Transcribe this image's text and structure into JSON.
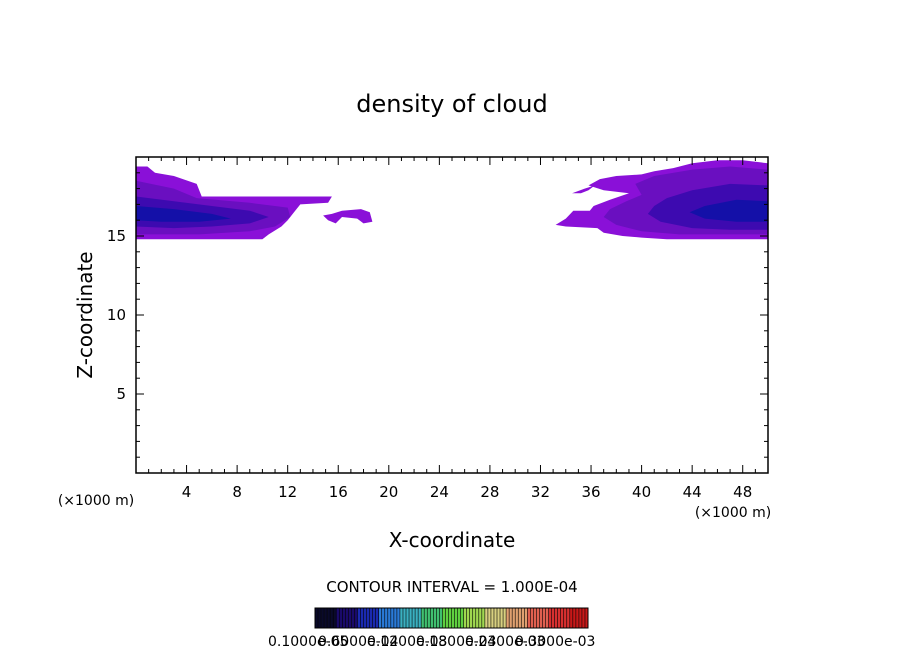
{
  "chart_data": {
    "type": "contour",
    "title": "density of cloud",
    "xlabel": "X-coordinate",
    "ylabel": "Z-coordinate",
    "x_unit_left": "(×1000 m)",
    "x_unit_right": "(×1000 m)",
    "xlim": [
      0,
      50
    ],
    "ylim": [
      0,
      20
    ],
    "x_ticks": [
      4,
      8,
      12,
      16,
      20,
      24,
      28,
      32,
      36,
      40,
      44,
      48
    ],
    "x_tick_labels": [
      "4",
      "8",
      "12",
      "16",
      "20",
      "24",
      "28",
      "32",
      "36",
      "40",
      "44",
      "48"
    ],
    "y_ticks": [
      5,
      10,
      15
    ],
    "y_tick_labels": [
      "5",
      "10",
      "15"
    ],
    "contour_interval_text": "CONTOUR INTERVAL = 1.000E-04",
    "colorbar_labels_text": "0.10000e-05",
    "colorbar_labels_overlap": [
      "0.1000e-05",
      "0.6000e-04",
      "0.1200e-03",
      "0.1800e-03",
      "0.2400e-03",
      "0.3000e-03"
    ],
    "colors": {
      "outer": "#8a10d8",
      "level2": "#6a0fc0",
      "level3": "#3d0ab0",
      "core": "#1410a8"
    },
    "colorbar_colors": [
      "#0a0a2a",
      "#1a0a6a",
      "#1a2ab0",
      "#2a7ad8",
      "#3ab0c0",
      "#40c070",
      "#60d040",
      "#a0d850",
      "#d8d080",
      "#e0a070",
      "#e06050",
      "#d83030",
      "#c81818"
    ],
    "regions": [
      {
        "level": "outer",
        "points": [
          [
            0,
            19.4
          ],
          [
            0.9,
            19.4
          ],
          [
            1.5,
            19
          ],
          [
            3,
            18.8
          ],
          [
            4.8,
            18.3
          ],
          [
            5.2,
            17.5
          ],
          [
            15.5,
            17.5
          ],
          [
            15.2,
            17.1
          ],
          [
            13,
            17.0
          ],
          [
            12.5,
            16.5
          ],
          [
            12,
            16
          ],
          [
            11.5,
            15.6
          ],
          [
            10.5,
            15.1
          ],
          [
            10,
            14.8
          ],
          [
            0,
            14.8
          ]
        ]
      },
      {
        "level": "level2",
        "points": [
          [
            0,
            18.5
          ],
          [
            3,
            18
          ],
          [
            4.8,
            17.4
          ],
          [
            9,
            17.1
          ],
          [
            12,
            16.8
          ],
          [
            12.2,
            16.2
          ],
          [
            11,
            15.6
          ],
          [
            9,
            15.3
          ],
          [
            5,
            15.1
          ],
          [
            0,
            15.1
          ]
        ]
      },
      {
        "level": "level3",
        "points": [
          [
            0,
            17.5
          ],
          [
            3,
            17.2
          ],
          [
            6,
            16.9
          ],
          [
            9,
            16.6
          ],
          [
            10.5,
            16.2
          ],
          [
            9,
            15.8
          ],
          [
            6,
            15.6
          ],
          [
            3,
            15.5
          ],
          [
            0,
            15.6
          ]
        ]
      },
      {
        "level": "core",
        "points": [
          [
            0,
            16.9
          ],
          [
            3,
            16.7
          ],
          [
            6,
            16.4
          ],
          [
            7.5,
            16.1
          ],
          [
            5,
            15.9
          ],
          [
            2,
            15.9
          ],
          [
            0,
            16.0
          ]
        ]
      },
      {
        "level": "outer",
        "points": [
          [
            14.8,
            16.3
          ],
          [
            15.2,
            16.0
          ],
          [
            15.8,
            15.8
          ],
          [
            16.3,
            16.2
          ],
          [
            17.5,
            16.1
          ],
          [
            18,
            15.8
          ],
          [
            18.7,
            15.9
          ],
          [
            18.5,
            16.5
          ],
          [
            17.8,
            16.7
          ],
          [
            16.3,
            16.6
          ],
          [
            15.5,
            16.4
          ]
        ]
      },
      {
        "level": "outer",
        "points": [
          [
            50,
            19.6
          ],
          [
            48,
            19.8
          ],
          [
            46,
            19.8
          ],
          [
            44,
            19.6
          ],
          [
            42.5,
            19.3
          ],
          [
            41,
            19.1
          ],
          [
            40,
            18.9
          ],
          [
            38,
            18.8
          ],
          [
            36.7,
            18.6
          ],
          [
            35.8,
            18.2
          ],
          [
            37,
            17.9
          ],
          [
            39,
            17.7
          ],
          [
            37.5,
            17.3
          ],
          [
            36.2,
            16.9
          ],
          [
            35.9,
            16.6
          ],
          [
            34.6,
            16.6
          ],
          [
            34,
            16.1
          ],
          [
            33.2,
            15.7
          ],
          [
            34,
            15.6
          ],
          [
            36.5,
            15.5
          ],
          [
            37,
            15.2
          ],
          [
            38.5,
            15.0
          ],
          [
            40,
            14.9
          ],
          [
            42,
            14.8
          ],
          [
            50,
            14.8
          ]
        ]
      },
      {
        "level": "level2",
        "points": [
          [
            50,
            19.2
          ],
          [
            47,
            19.4
          ],
          [
            44,
            19.2
          ],
          [
            41,
            18.8
          ],
          [
            39.5,
            18.3
          ],
          [
            40,
            17.6
          ],
          [
            38.8,
            17.2
          ],
          [
            37.5,
            16.7
          ],
          [
            37,
            16.2
          ],
          [
            38,
            15.7
          ],
          [
            40,
            15.3
          ],
          [
            43,
            15.1
          ],
          [
            50,
            15.1
          ]
        ]
      },
      {
        "level": "level3",
        "points": [
          [
            50,
            18.2
          ],
          [
            47,
            18.3
          ],
          [
            44,
            17.9
          ],
          [
            42,
            17.4
          ],
          [
            41,
            16.9
          ],
          [
            40.5,
            16.4
          ],
          [
            41.5,
            15.9
          ],
          [
            44,
            15.5
          ],
          [
            47,
            15.4
          ],
          [
            50,
            15.4
          ]
        ]
      },
      {
        "level": "core",
        "points": [
          [
            50,
            17.2
          ],
          [
            47.5,
            17.3
          ],
          [
            45,
            16.9
          ],
          [
            43.8,
            16.5
          ],
          [
            45,
            16.1
          ],
          [
            47.5,
            15.9
          ],
          [
            50,
            15.9
          ]
        ]
      },
      {
        "level": "outer",
        "points": [
          [
            34.5,
            17.7
          ],
          [
            35.5,
            18.0
          ],
          [
            36.3,
            18.2
          ],
          [
            35.8,
            17.9
          ],
          [
            35.2,
            17.7
          ]
        ]
      }
    ]
  }
}
